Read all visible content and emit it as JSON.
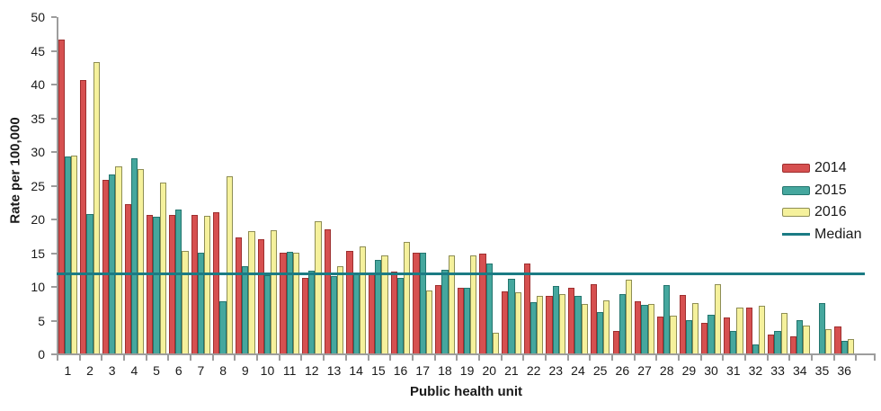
{
  "chart_data": {
    "type": "bar",
    "title": "",
    "xlabel": "Public health unit",
    "ylabel": "Rate per 100,000",
    "ylim": [
      0,
      50
    ],
    "ytick_step": 5,
    "grid": false,
    "legend_position": "right",
    "categories": [
      "1",
      "2",
      "3",
      "4",
      "5",
      "6",
      "7",
      "8",
      "9",
      "10",
      "11",
      "12",
      "13",
      "14",
      "15",
      "16",
      "17",
      "18",
      "19",
      "20",
      "21",
      "22",
      "23",
      "24",
      "25",
      "26",
      "27",
      "28",
      "29",
      "30",
      "31",
      "32",
      "33",
      "34",
      "35",
      "36"
    ],
    "series": [
      {
        "name": "2014",
        "color": "#d65050",
        "border_color": "#9e2f2f",
        "values": [
          46.6,
          40.6,
          25.8,
          22.1,
          20.5,
          20.6,
          20.6,
          20.9,
          17.2,
          16.9,
          14.9,
          11.2,
          18.4,
          15.2,
          11.9,
          12.1,
          15.0,
          10.2,
          9.8,
          14.8,
          9.2,
          13.3,
          8.5,
          9.8,
          10.3,
          3.3,
          7.8,
          5.5,
          8.7,
          4.6,
          5.3,
          6.8,
          2.8,
          2.5,
          0,
          4.0
        ]
      },
      {
        "name": "2015",
        "color": "#45a79e",
        "border_color": "#23756e",
        "values": [
          29.2,
          20.7,
          26.6,
          28.9,
          20.3,
          21.4,
          14.9,
          7.7,
          12.9,
          11.6,
          15.1,
          12.3,
          11.5,
          11.7,
          13.9,
          11.2,
          15.0,
          12.4,
          9.8,
          13.3,
          11.1,
          7.6,
          10.0,
          8.6,
          6.1,
          8.8,
          7.2,
          10.2,
          5.0,
          5.8,
          3.3,
          1.3,
          3.4,
          4.9,
          7.5,
          1.9
        ]
      },
      {
        "name": "2016",
        "color": "#f5f19c",
        "border_color": "#8e8e55",
        "values": [
          29.3,
          43.2,
          27.8,
          27.3,
          25.3,
          15.2,
          20.4,
          26.3,
          18.2,
          18.3,
          15.0,
          19.6,
          12.9,
          15.9,
          14.6,
          16.5,
          9.4,
          14.5,
          14.5,
          3.1,
          9.1,
          8.5,
          8.8,
          7.4,
          7.9,
          10.9,
          7.3,
          5.6,
          7.5,
          10.3,
          6.8,
          7.1,
          6.0,
          4.1,
          3.6,
          2.2
        ]
      }
    ],
    "median": {
      "label": "Median",
      "value": 11.8,
      "color": "#1b7b84"
    }
  },
  "axis": {
    "line_color": "#9d9d9d",
    "text_color": "#1a1a1a"
  }
}
